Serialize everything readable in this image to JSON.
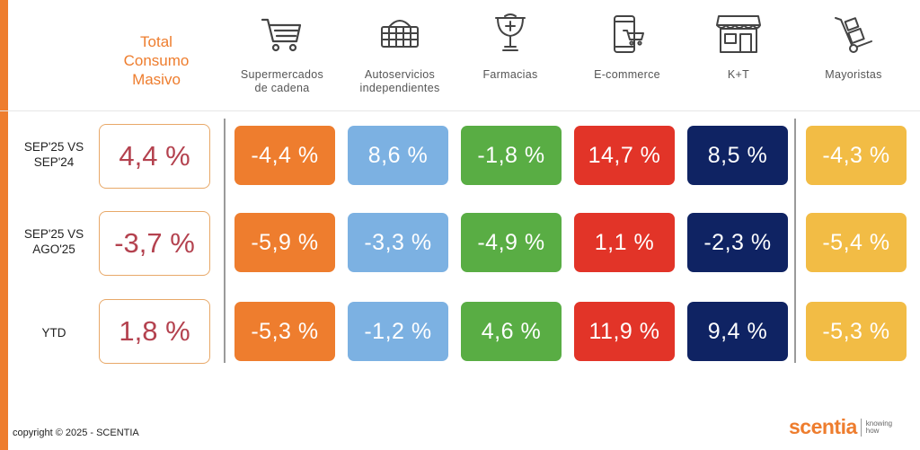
{
  "header": {
    "total_label": "Total\nConsumo\nMasivo"
  },
  "colors": {
    "accent": "#ee7d2e",
    "total_value": "#b4424f",
    "channels": {
      "supermercados": "#ee7d2e",
      "autoservicios": "#7cb1e2",
      "farmacias": "#59ad44",
      "ecommerce": "#e23428",
      "kt": "#0f2363",
      "mayoristas": "#f2bc45"
    }
  },
  "columns": [
    {
      "key": "supermercados",
      "label": "Supermercados\nde cadena",
      "icon": "shopping-cart-icon"
    },
    {
      "key": "autoservicios",
      "label": "Autoservicios\nindependientes",
      "icon": "shopping-basket-icon"
    },
    {
      "key": "farmacias",
      "label": "Farmacias",
      "icon": "pharmacy-cup-icon"
    },
    {
      "key": "ecommerce",
      "label": "E-commerce",
      "icon": "mobile-cart-icon"
    },
    {
      "key": "kt",
      "label": "K+T",
      "icon": "storefront-icon"
    },
    {
      "key": "mayoristas",
      "label": "Mayoristas",
      "icon": "hand-truck-icon"
    }
  ],
  "rows": [
    {
      "label": "SEP'25 VS\nSEP'24",
      "total": "4,4 %",
      "values": [
        "-4,4 %",
        "8,6 %",
        "-1,8 %",
        "14,7 %",
        "8,5 %",
        "-4,3 %"
      ]
    },
    {
      "label": "SEP'25 VS\nAGO'25",
      "total": "-3,7 %",
      "values": [
        "-5,9 %",
        "-3,3 %",
        "-4,9 %",
        "1,1 %",
        "-2,3 %",
        "-5,4 %"
      ]
    },
    {
      "label": "YTD",
      "total": "1,8 %",
      "values": [
        "-5,3 %",
        "-1,2 %",
        "4,6 %",
        "11,9 %",
        "9,4 %",
        "-5,3 %"
      ]
    }
  ],
  "chart_data": {
    "type": "table",
    "row_headers": [
      "SEP'25 VS SEP'24",
      "SEP'25 VS AGO'25",
      "YTD"
    ],
    "column_headers": [
      "Total Consumo Masivo",
      "Supermercados de cadena",
      "Autoservicios independientes",
      "Farmacias",
      "E-commerce",
      "K+T",
      "Mayoristas"
    ],
    "cells": [
      [
        4.4,
        -4.4,
        8.6,
        -1.8,
        14.7,
        8.5,
        -4.3
      ],
      [
        -3.7,
        -5.9,
        -3.3,
        -4.9,
        1.1,
        -2.3,
        -5.4
      ],
      [
        1.8,
        -5.3,
        -1.2,
        4.6,
        11.9,
        9.4,
        -5.3
      ]
    ],
    "unit": "%"
  },
  "footer": {
    "copyright": "copyright © 2025 - SCENTIA",
    "logo_word": "scentia",
    "logo_tagline": "knowing\nhow"
  }
}
